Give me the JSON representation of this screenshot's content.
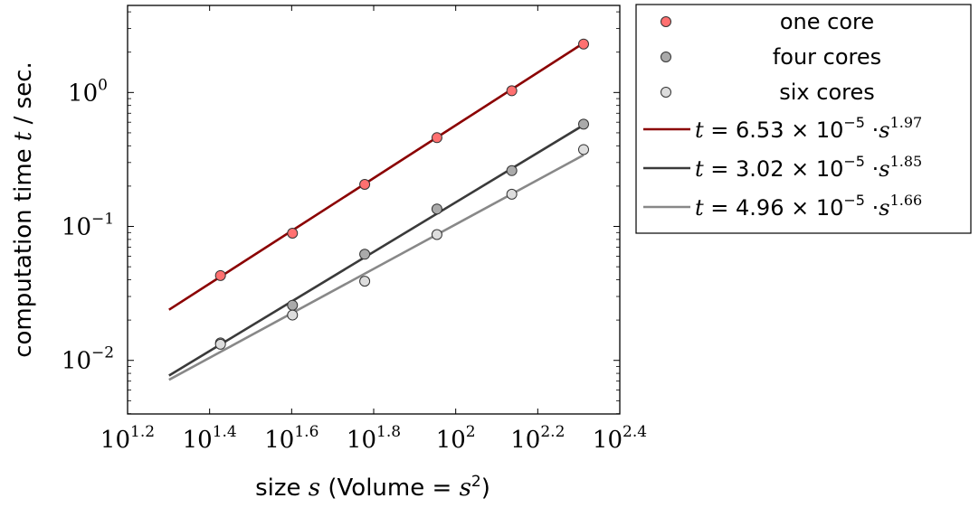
{
  "chart_data": {
    "type": "scatter",
    "xscale": "log",
    "yscale": "log",
    "xlim_log10": [
      1.2,
      2.4
    ],
    "ylim_log10": [
      -2.4,
      0.65
    ],
    "xlabel": {
      "pre": "size ",
      "var": "s",
      "mid": " (Volume = ",
      "var2": "s",
      "sup": "2",
      "post": ")"
    },
    "ylabel": {
      "pre": "computation time ",
      "var": "t",
      "post": " / sec."
    },
    "xticks": [
      {
        "base": "10",
        "exp": "1.2",
        "log": 1.2
      },
      {
        "base": "10",
        "exp": "1.4",
        "log": 1.4
      },
      {
        "base": "10",
        "exp": "1.6",
        "log": 1.6
      },
      {
        "base": "10",
        "exp": "1.8",
        "log": 1.8
      },
      {
        "base": "10",
        "exp": "2",
        "log": 2.0
      },
      {
        "base": "10",
        "exp": "2.2",
        "log": 2.2
      },
      {
        "base": "10",
        "exp": "2.4",
        "log": 2.4
      }
    ],
    "yticks": [
      {
        "base": "10",
        "exp": "0",
        "log": 0
      },
      {
        "base": "10",
        "exp": "−1",
        "log": -1
      },
      {
        "base": "10",
        "exp": "−2",
        "log": -2
      }
    ],
    "x": [
      26.7,
      40,
      60,
      90,
      137,
      205
    ],
    "series": [
      {
        "name": "one core",
        "color": "#ff7070",
        "stroke": "#8a1a1a",
        "values": [
          0.043,
          0.089,
          0.206,
          0.46,
          1.03,
          2.3
        ]
      },
      {
        "name": "four cores",
        "color": "#aaaaaa",
        "stroke": "#555555",
        "values": [
          0.0135,
          0.0258,
          0.062,
          0.135,
          0.261,
          0.58
        ]
      },
      {
        "name": "six cores",
        "color": "#dddddd",
        "stroke": "#777777",
        "values": [
          0.0132,
          0.0218,
          0.039,
          0.087,
          0.174,
          0.375
        ]
      }
    ],
    "fits": [
      {
        "label_pre": "t",
        "label": " = 6.53 × 10",
        "exp": "−5",
        "mid": " ·",
        "var": "s",
        "power": "1.97",
        "coef": 6.53e-05,
        "pow": 1.97,
        "color": "#8b0000",
        "x_range": [
          20,
          205
        ]
      },
      {
        "label_pre": "t",
        "label": " = 3.02 × 10",
        "exp": "−5",
        "mid": " ·",
        "var": "s",
        "power": "1.85",
        "coef": 3.02e-05,
        "pow": 1.85,
        "color": "#3a3a3a",
        "x_range": [
          20,
          205
        ]
      },
      {
        "label_pre": "t",
        "label": " = 4.96 × 10",
        "exp": "−5",
        "mid": " ·",
        "var": "s",
        "power": "1.66",
        "coef": 4.96e-05,
        "pow": 1.66,
        "color": "#888888",
        "x_range": [
          20,
          205
        ]
      }
    ],
    "legend_position": "outside-right-top"
  }
}
